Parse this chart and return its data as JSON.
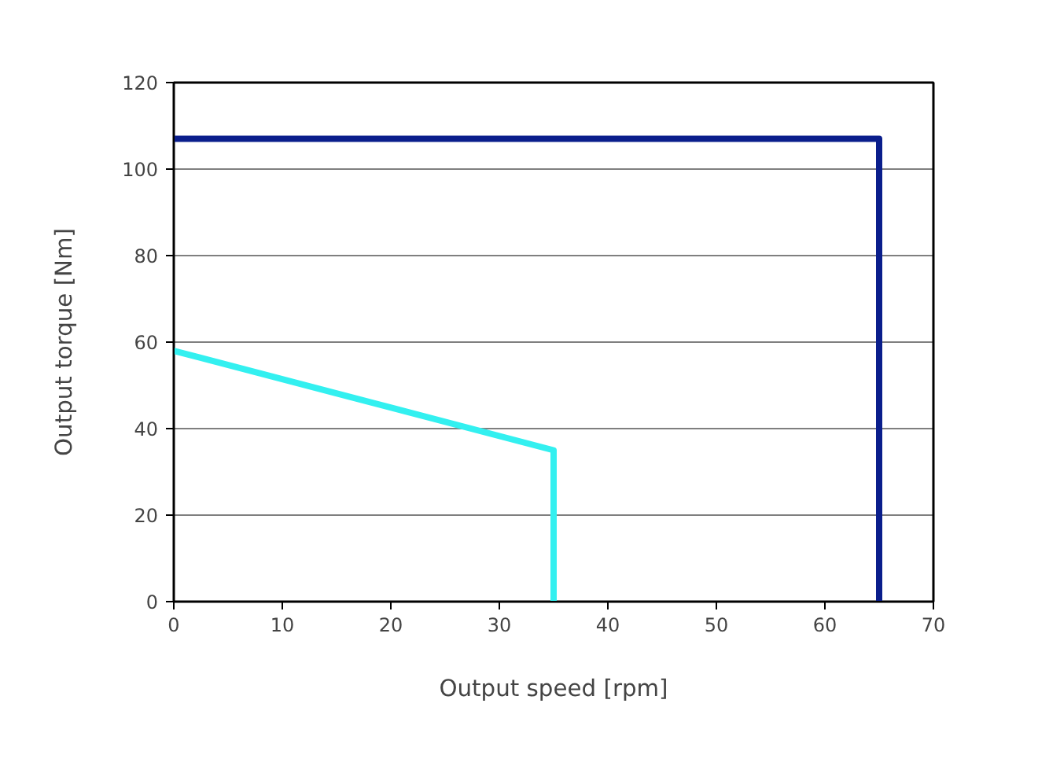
{
  "chart_data": {
    "type": "line",
    "xlabel": "Output speed [rpm]",
    "ylabel": "Output torque [Nm]",
    "series": [
      {
        "color": "#0a1e8c",
        "x": [
          0,
          65,
          65
        ],
        "values": [
          107,
          107,
          0
        ]
      },
      {
        "color": "#33f0f0",
        "x": [
          0,
          35,
          35
        ],
        "values": [
          58,
          35,
          0
        ]
      }
    ],
    "xlim": [
      0,
      70
    ],
    "ylim": [
      0,
      120
    ],
    "xticks": [
      0,
      10,
      20,
      30,
      40,
      50,
      60,
      70
    ],
    "yticks": [
      0,
      20,
      40,
      60,
      80,
      100,
      120
    ],
    "grid": "y",
    "marker": "none",
    "line_style": "solid"
  }
}
